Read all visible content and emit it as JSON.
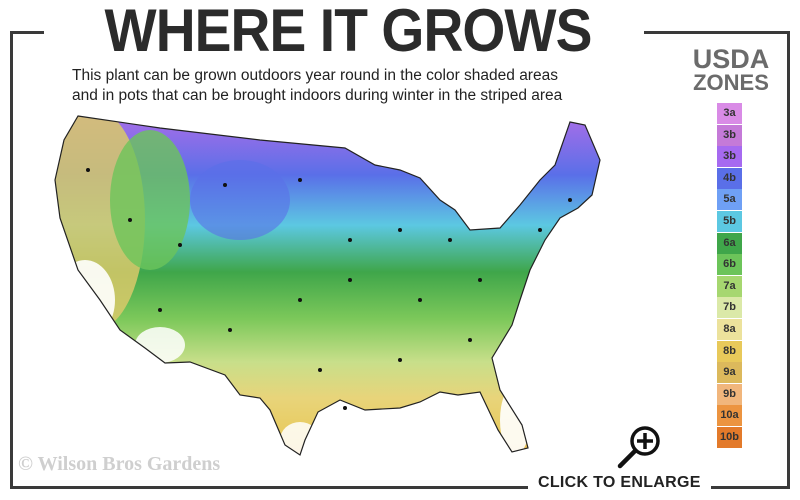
{
  "title": "WHERE IT GROWS",
  "subtitle_lines": [
    "This plant can be grown outdoors year round in the color shaded areas",
    "and in pots that can be brought indoors during winter in the striped area"
  ],
  "legend": {
    "title_line1": "USDA",
    "title_line2": "ZONES",
    "zones": [
      {
        "label": "3a",
        "color": "#d98be6"
      },
      {
        "label": "3b",
        "color": "#c57ad8"
      },
      {
        "label": "3b",
        "color": "#a66af0"
      },
      {
        "label": "4b",
        "color": "#5a6fe8"
      },
      {
        "label": "5a",
        "color": "#6fa0f5"
      },
      {
        "label": "5b",
        "color": "#5cc8e2"
      },
      {
        "label": "6a",
        "color": "#3fa64a"
      },
      {
        "label": "6b",
        "color": "#6cc45a"
      },
      {
        "label": "7a",
        "color": "#a6d770"
      },
      {
        "label": "7b",
        "color": "#dbe9a8"
      },
      {
        "label": "8a",
        "color": "#ece29c"
      },
      {
        "label": "8b",
        "color": "#e8c95a"
      },
      {
        "label": "9a",
        "color": "#dcb95c"
      },
      {
        "label": "9b",
        "color": "#f1b67c"
      },
      {
        "label": "10a",
        "color": "#ec9440"
      },
      {
        "label": "10b",
        "color": "#e37a2a"
      }
    ]
  },
  "copyright": "© Wilson Bros Gardens",
  "enlarge_label": "CLICK TO ENLARGE",
  "icons": {
    "enlarge": "magnifier-plus-icon"
  }
}
